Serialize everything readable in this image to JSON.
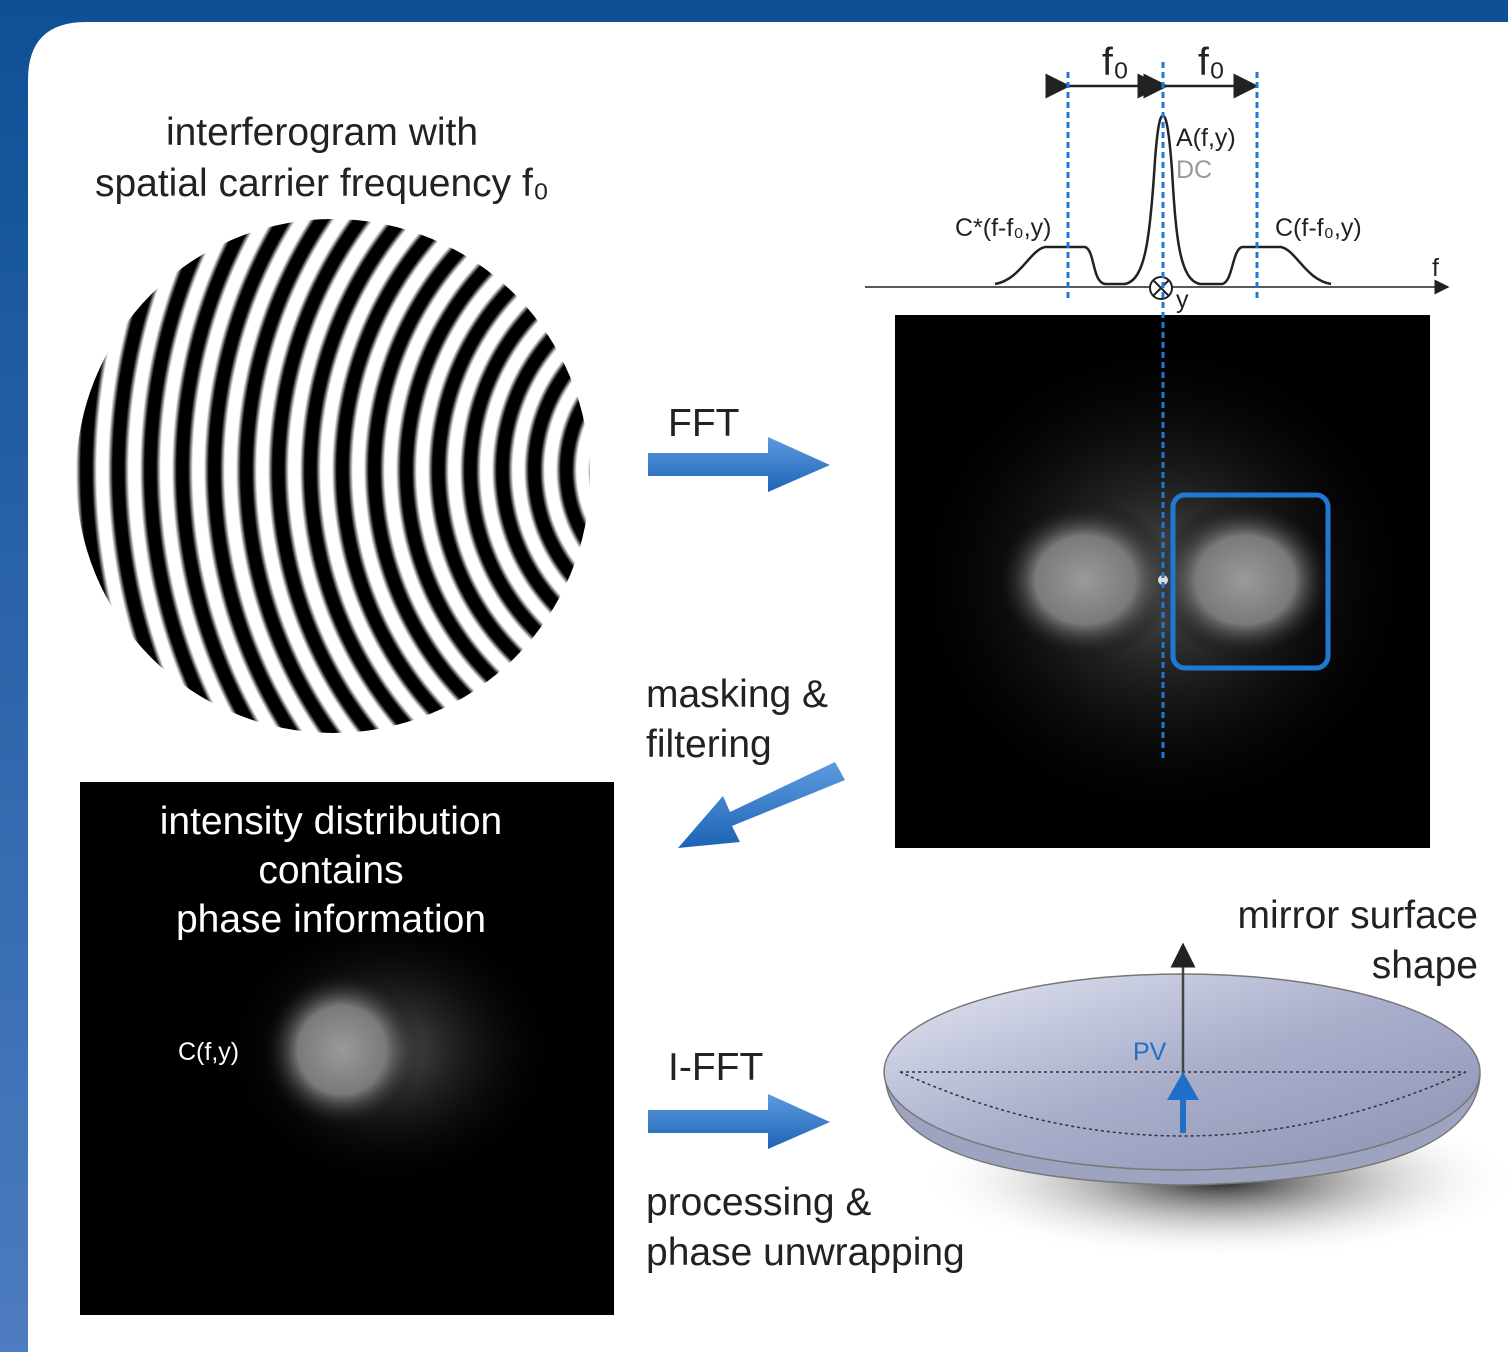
{
  "interferogram": {
    "title_lines": [
      "interferogram with",
      "spatial carrier frequency f₀"
    ]
  },
  "steps": {
    "fft": "FFT",
    "masking": [
      "masking &",
      "filtering"
    ],
    "ifft": "I-FFT",
    "processing": [
      "processing &",
      "phase unwrapping"
    ]
  },
  "spectrum": {
    "f0_left": "f₀",
    "f0_right": "f₀",
    "peak": "A(f,y)",
    "dc": "DC",
    "left_lobe": "C*(f-f₀,y)",
    "right_lobe": "C(f-f₀,y)",
    "f_axis": "f",
    "y_axis": "y"
  },
  "intensity": {
    "title_lines": [
      "intensity distribution",
      "contains",
      "phase information"
    ],
    "lobe": "C(f,y)"
  },
  "mirror": {
    "title_lines": [
      "mirror surface",
      "shape"
    ],
    "pv": "PV"
  }
}
